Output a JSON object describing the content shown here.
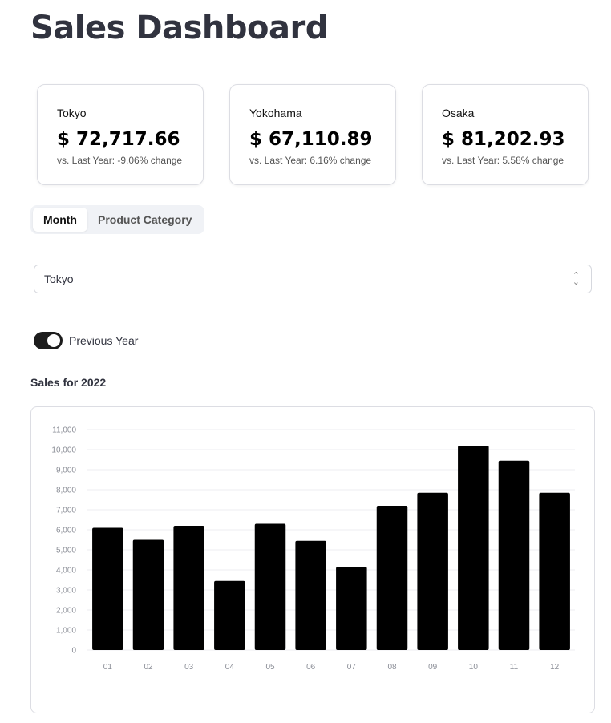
{
  "page": {
    "title": "Sales Dashboard"
  },
  "cards": [
    {
      "city": "Tokyo",
      "value": "$ 72,717.66",
      "delta": "vs. Last Year: -9.06% change"
    },
    {
      "city": "Yokohama",
      "value": "$ 67,110.89",
      "delta": "vs. Last Year: 6.16% change"
    },
    {
      "city": "Osaka",
      "value": "$ 81,202.93",
      "delta": "vs. Last Year: 5.58% change"
    }
  ],
  "tabs": [
    {
      "label": "Month",
      "active": true
    },
    {
      "label": "Product Category",
      "active": false
    }
  ],
  "select": {
    "value": "Tokyo"
  },
  "toggle": {
    "label": "Previous Year",
    "on": true
  },
  "chart_section": {
    "title": "Sales for 2022"
  },
  "chart_data": {
    "type": "bar",
    "categories": [
      "01",
      "02",
      "03",
      "04",
      "05",
      "06",
      "07",
      "08",
      "09",
      "10",
      "11",
      "12"
    ],
    "values": [
      6100,
      5500,
      6200,
      3450,
      6300,
      5450,
      4150,
      7200,
      7850,
      10200,
      9450,
      7850
    ],
    "ylim": [
      0,
      11000
    ],
    "yticks": [
      "0",
      "1,000",
      "2,000",
      "3,000",
      "4,000",
      "5,000",
      "6,000",
      "7,000",
      "8,000",
      "9,000",
      "10,000",
      "11,000"
    ],
    "grid": true,
    "bar_color": "#000000"
  }
}
